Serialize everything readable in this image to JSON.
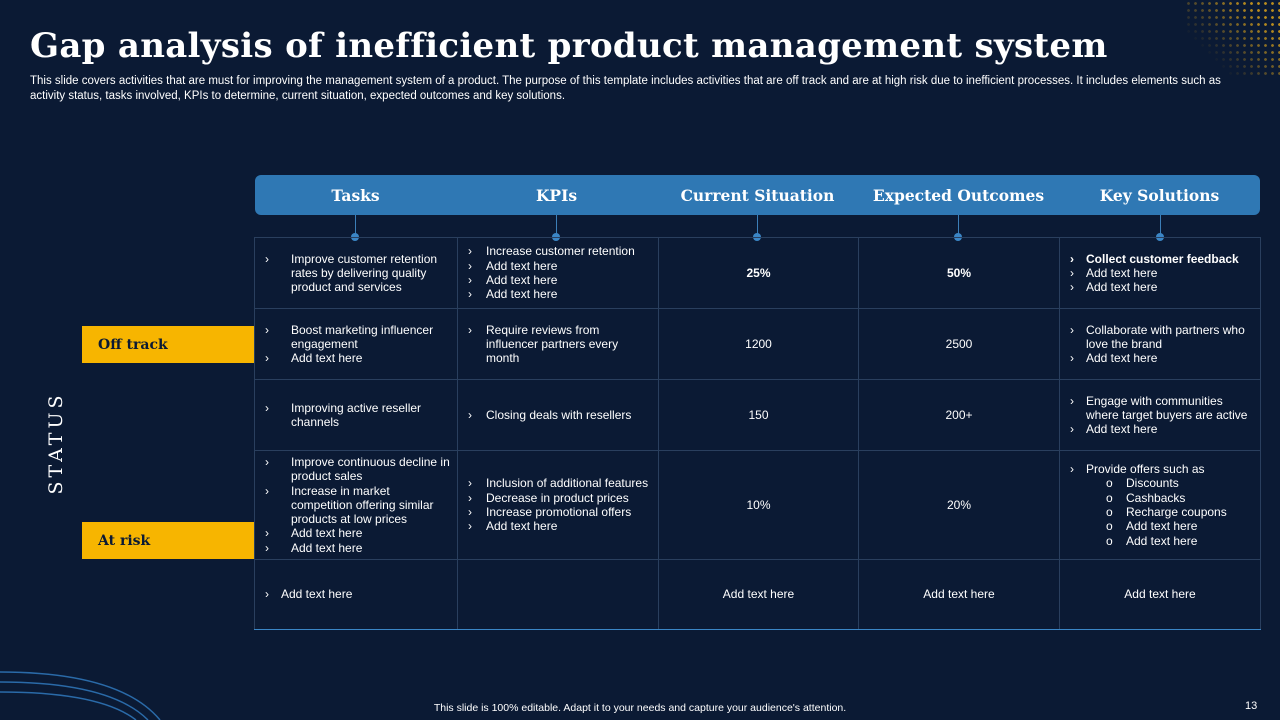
{
  "slide": {
    "title": "Gap analysis of inefficient product management system",
    "subtitle": "This slide covers activities that are must for improving the management system of a product. The purpose of this template includes activities that are off track and are at high risk due to inefficient processes. It includes elements such as activity status, tasks involved, KPIs to determine, current situation, expected outcomes and key solutions.",
    "footer": "This slide is 100% editable. Adapt it to your needs and capture your audience's attention.",
    "page_number": "13"
  },
  "status": {
    "axis_label": "STATUS",
    "off_track": "Off track",
    "at_risk": "At risk"
  },
  "headers": [
    "Tasks",
    "KPIs",
    "Current Situation",
    "Expected Outcomes",
    "Key  Solutions"
  ],
  "rows": [
    {
      "tasks": [
        "Improve customer retention rates by delivering  quality product and services"
      ],
      "kpis": [
        "Increase customer retention",
        "Add text here",
        "Add text here",
        "Add text here"
      ],
      "current": "25%",
      "expected": "50%",
      "solutions": [
        "Collect customer feedback",
        "Add text here",
        "Add text here"
      ]
    },
    {
      "tasks": [
        "Boost marketing influencer engagement",
        "Add text here"
      ],
      "kpis": [
        "Require reviews from influencer partners every  month"
      ],
      "current": "1200",
      "expected": "2500",
      "solutions": [
        "Collaborate with partners who love the brand",
        "Add text here"
      ]
    },
    {
      "tasks": [
        "Improving active reseller channels"
      ],
      "kpis": [
        "Closing deals with resellers"
      ],
      "current": "150",
      "expected": "200+",
      "solutions": [
        "Engage with communities where target buyers are active",
        "Add text here"
      ]
    },
    {
      "tasks": [
        "Improve continuous decline in product sales",
        "Increase in market competition offering similar products at low prices",
        "Add text here",
        "Add text here"
      ],
      "kpis": [
        "Inclusion of additional features",
        "Decrease in product prices",
        "Increase promotional offers",
        "Add text here"
      ],
      "current": "10%",
      "expected": "20%",
      "solutions_intro": "Provide offers such as",
      "solutions_sub": [
        "Discounts",
        "Cashbacks",
        "Recharge coupons",
        "Add text here",
        "Add text here"
      ]
    },
    {
      "tasks": [
        "Add text here"
      ],
      "current": "Add text here",
      "expected": "Add text here",
      "solutions": "Add text here"
    }
  ],
  "colors": {
    "background": "#0b1a34",
    "header": "#2f78b4",
    "label": "#f7b500",
    "divider": "#c99a22"
  }
}
